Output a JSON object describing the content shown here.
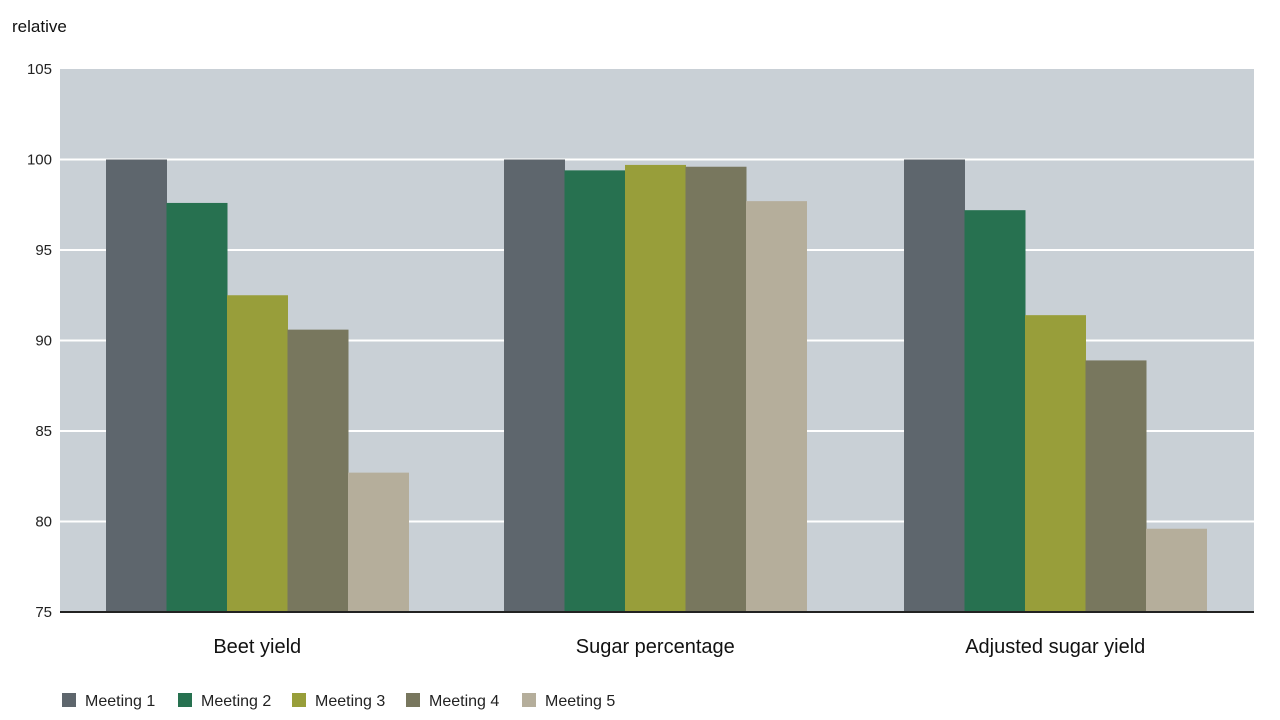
{
  "chart_data": {
    "type": "bar",
    "title": "",
    "xlabel": "",
    "ylabel": "relative",
    "ylim": [
      75,
      105
    ],
    "yticks": [
      75,
      80,
      85,
      90,
      95,
      100,
      105
    ],
    "grid": true,
    "legend_position": "bottom-left",
    "categories": [
      "Beet yield",
      "Sugar percentage",
      "Adjusted sugar yield"
    ],
    "series": [
      {
        "name": "Meeting 1",
        "color": "#5e666d",
        "values": [
          100,
          100,
          100
        ]
      },
      {
        "name": "Meeting 2",
        "color": "#277150",
        "values": [
          97.6,
          99.4,
          97.2
        ]
      },
      {
        "name": "Meeting 3",
        "color": "#989e3a",
        "values": [
          92.5,
          99.7,
          91.4
        ]
      },
      {
        "name": "Meeting 4",
        "color": "#78775e",
        "values": [
          90.6,
          99.6,
          88.9
        ]
      },
      {
        "name": "Meeting 5",
        "color": "#b5ae9b",
        "values": [
          82.7,
          97.7,
          79.6
        ]
      }
    ],
    "colors": {
      "plot_background": "#c9d0d6",
      "gridline": "#ffffff",
      "axis": "#222222"
    }
  }
}
